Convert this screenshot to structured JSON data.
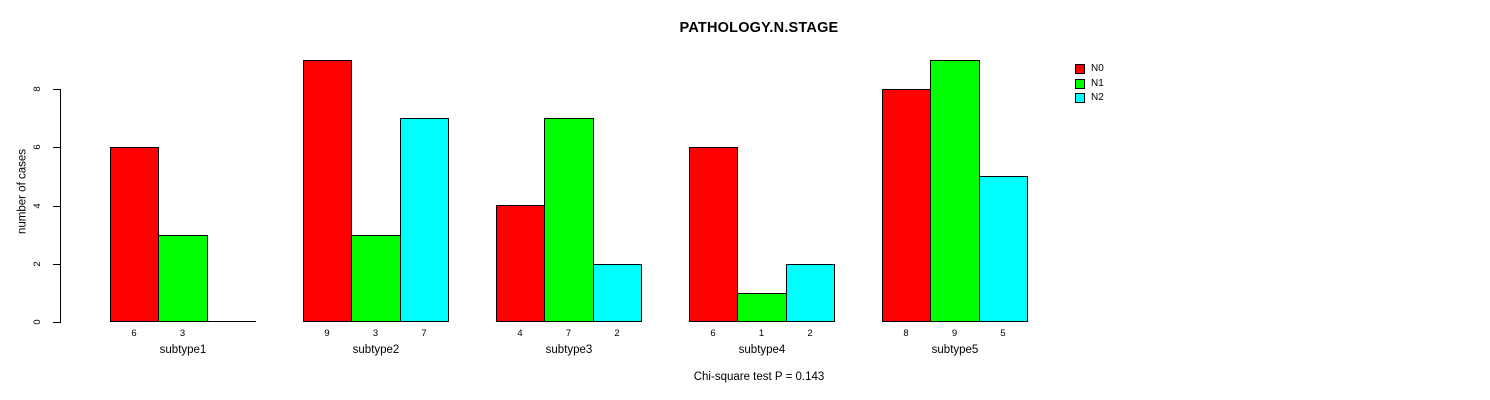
{
  "chart_data": {
    "type": "bar",
    "title": "PATHOLOGY.N.STAGE",
    "ylabel": "number of cases",
    "xlabel": "",
    "categories": [
      "subtype1",
      "subtype2",
      "subtype3",
      "subtype4",
      "subtype5"
    ],
    "series": [
      {
        "name": "N0",
        "color": "#ff0000",
        "values": [
          6,
          9,
          4,
          6,
          8
        ]
      },
      {
        "name": "N1",
        "color": "#00ff00",
        "values": [
          3,
          3,
          7,
          1,
          9
        ]
      },
      {
        "name": "N2",
        "color": "#00ffff",
        "values": [
          0,
          7,
          2,
          2,
          5
        ]
      }
    ],
    "yticks": [
      0,
      2,
      4,
      6,
      8
    ],
    "ylim": [
      0,
      9.3
    ],
    "grid": false,
    "legend_position": "top-right",
    "legend_entries": [
      "N0",
      "N1",
      "N2"
    ],
    "bar_value_labels": true,
    "annotation": "Chi-square test P = 0.143"
  }
}
